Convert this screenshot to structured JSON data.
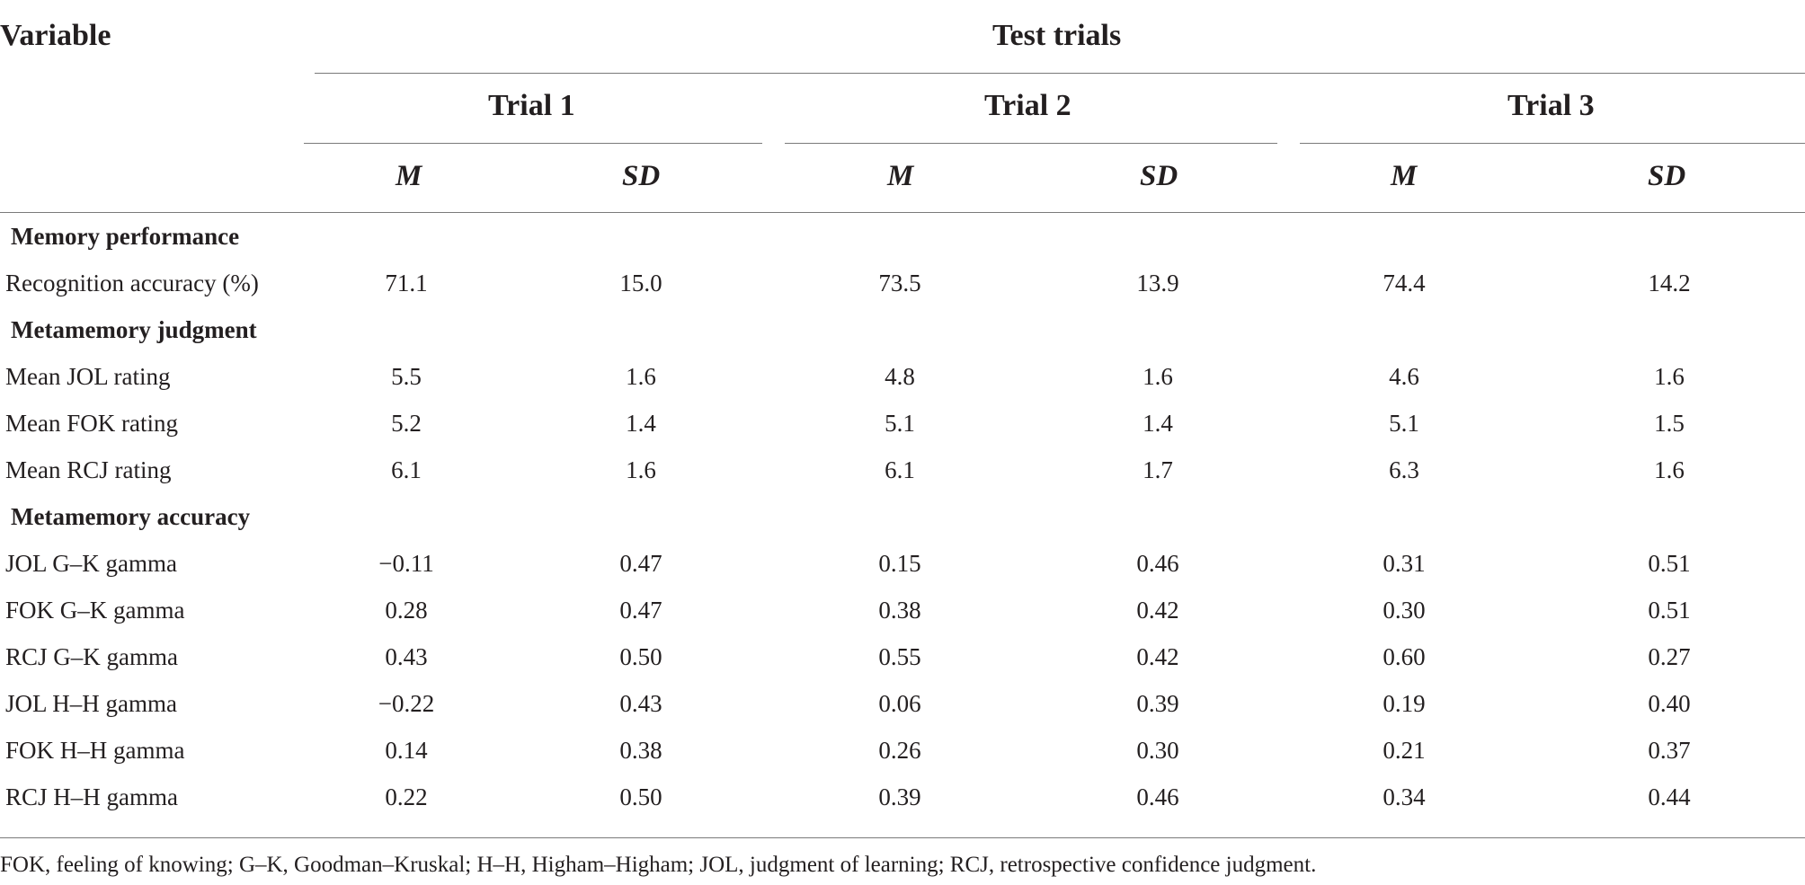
{
  "table": {
    "header": {
      "variable": "Variable",
      "group": "Test trials",
      "trials": [
        "Trial 1",
        "Trial 2",
        "Trial 3"
      ],
      "stat_labels": [
        "M",
        "SD"
      ]
    },
    "sections": [
      {
        "title": "Memory performance",
        "rows": [
          {
            "label": "Recognition accuracy (%)",
            "values": [
              "71.1",
              "15.0",
              "73.5",
              "13.9",
              "74.4",
              "14.2"
            ]
          }
        ]
      },
      {
        "title": "Metamemory judgment",
        "rows": [
          {
            "label": "Mean JOL rating",
            "values": [
              "5.5",
              "1.6",
              "4.8",
              "1.6",
              "4.6",
              "1.6"
            ]
          },
          {
            "label": "Mean FOK rating",
            "values": [
              "5.2",
              "1.4",
              "5.1",
              "1.4",
              "5.1",
              "1.5"
            ]
          },
          {
            "label": "Mean RCJ rating",
            "values": [
              "6.1",
              "1.6",
              "6.1",
              "1.7",
              "6.3",
              "1.6"
            ]
          }
        ]
      },
      {
        "title": "Metamemory accuracy",
        "rows": [
          {
            "label": "JOL G–K gamma",
            "values": [
              "−0.11",
              "0.47",
              "0.15",
              "0.46",
              "0.31",
              "0.51"
            ]
          },
          {
            "label": "FOK G–K gamma",
            "values": [
              "0.28",
              "0.47",
              "0.38",
              "0.42",
              "0.30",
              "0.51"
            ]
          },
          {
            "label": "RCJ G–K gamma",
            "values": [
              "0.43",
              "0.50",
              "0.55",
              "0.42",
              "0.60",
              "0.27"
            ]
          },
          {
            "label": "JOL H–H gamma",
            "values": [
              "−0.22",
              "0.43",
              "0.06",
              "0.39",
              "0.19",
              "0.40"
            ]
          },
          {
            "label": "FOK H–H gamma",
            "values": [
              "0.14",
              "0.38",
              "0.26",
              "0.30",
              "0.21",
              "0.37"
            ]
          },
          {
            "label": "RCJ H–H gamma",
            "values": [
              "0.22",
              "0.50",
              "0.39",
              "0.46",
              "0.34",
              "0.44"
            ]
          }
        ]
      }
    ],
    "footnote": "FOK, feeling of knowing; G–K, Goodman–Kruskal; H–H, Higham–Higham; JOL, judgment of learning; RCJ, retrospective confidence judgment."
  }
}
